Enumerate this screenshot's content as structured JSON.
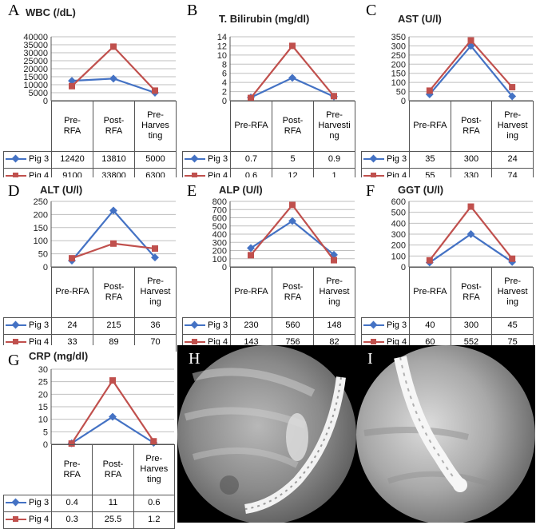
{
  "colors": {
    "pig3": "#4472C4",
    "pig4": "#C0504D",
    "grid": "#BFBFBF"
  },
  "chart_data": [
    {
      "letter": "A",
      "type": "line",
      "title": "WBC (/dL)",
      "categories": [
        "Pre-RFA",
        "Post-RFA",
        "Pre-Harvesting"
      ],
      "category_labels": [
        [
          "Pre-",
          "RFA"
        ],
        [
          "Post-",
          "RFA"
        ],
        [
          "Pre-",
          "Harves",
          "ting"
        ]
      ],
      "y_ticks": [
        "0",
        "5000",
        "10000",
        "15000",
        "20000",
        "25000",
        "30000",
        "35000",
        "40000"
      ],
      "ylim": [
        0,
        40000
      ],
      "series": [
        {
          "name": "Pig 3",
          "values": [
            12420,
            13810,
            5000
          ],
          "labels": [
            "12420",
            "13810",
            "5000"
          ]
        },
        {
          "name": "Pig 4",
          "values": [
            9100,
            33800,
            6300
          ],
          "labels": [
            "9100",
            "33800",
            "6300"
          ]
        }
      ]
    },
    {
      "letter": "B",
      "type": "line",
      "title": "T. Bilirubin (mg/dl)",
      "categories": [
        "Pre-RFA",
        "Post-RFA",
        "Pre-Harvesting"
      ],
      "category_labels": [
        [
          "Pre-RFA"
        ],
        [
          "Post-",
          "RFA"
        ],
        [
          "Pre-",
          "Harvesti",
          "ng"
        ]
      ],
      "y_ticks": [
        "0",
        "2",
        "4",
        "6",
        "8",
        "10",
        "12",
        "14"
      ],
      "ylim": [
        0,
        14
      ],
      "series": [
        {
          "name": "Pig 3",
          "values": [
            0.7,
            5,
            0.9
          ],
          "labels": [
            "0.7",
            "5",
            "0.9"
          ]
        },
        {
          "name": "Pig 4",
          "values": [
            0.6,
            12,
            1
          ],
          "labels": [
            "0.6",
            "12",
            "1"
          ]
        }
      ]
    },
    {
      "letter": "C",
      "type": "line",
      "title": "AST (U/l)",
      "categories": [
        "Pre-RFA",
        "Post-RFA",
        "Pre-Harvesting"
      ],
      "category_labels": [
        [
          "Pre-RFA"
        ],
        [
          "Post-",
          "RFA"
        ],
        [
          "Pre-",
          "Harvest",
          "ing"
        ]
      ],
      "y_ticks": [
        "0",
        "50",
        "100",
        "150",
        "200",
        "250",
        "300",
        "350"
      ],
      "ylim": [
        0,
        350
      ],
      "series": [
        {
          "name": "Pig 3",
          "values": [
            35,
            300,
            24
          ],
          "labels": [
            "35",
            "300",
            "24"
          ]
        },
        {
          "name": "Pig 4",
          "values": [
            55,
            330,
            74
          ],
          "labels": [
            "55",
            "330",
            "74"
          ]
        }
      ]
    },
    {
      "letter": "D",
      "type": "line",
      "title": "ALT (U/l)",
      "categories": [
        "Pre-RFA",
        "Post-RFA",
        "Pre-Harvesting"
      ],
      "category_labels": [
        [
          "Pre-RFA"
        ],
        [
          "Post-",
          "RFA"
        ],
        [
          "Pre-",
          "Harvest",
          "ing"
        ]
      ],
      "y_ticks": [
        "0",
        "50",
        "100",
        "150",
        "200",
        "250"
      ],
      "ylim": [
        0,
        250
      ],
      "series": [
        {
          "name": "Pig 3",
          "values": [
            24,
            215,
            36
          ],
          "labels": [
            "24",
            "215",
            "36"
          ]
        },
        {
          "name": "Pig 4",
          "values": [
            33,
            89,
            70
          ],
          "labels": [
            "33",
            "89",
            "70"
          ]
        }
      ]
    },
    {
      "letter": "E",
      "type": "line",
      "title": "ALP (U/l)",
      "categories": [
        "Pre-RFA",
        "Post-RFA",
        "Pre-Harvesting"
      ],
      "category_labels": [
        [
          "Pre-RFA"
        ],
        [
          "Post-",
          "RFA"
        ],
        [
          "Pre-",
          "Harvest",
          "ing"
        ]
      ],
      "y_ticks": [
        "0",
        "100",
        "200",
        "300",
        "400",
        "500",
        "600",
        "700",
        "800"
      ],
      "ylim": [
        0,
        800
      ],
      "series": [
        {
          "name": "Pig 3",
          "values": [
            230,
            560,
            148
          ],
          "labels": [
            "230",
            "560",
            "148"
          ]
        },
        {
          "name": "Pig 4",
          "values": [
            143,
            756,
            82
          ],
          "labels": [
            "143",
            "756",
            "82"
          ]
        }
      ]
    },
    {
      "letter": "F",
      "type": "line",
      "title": "GGT (U/l)",
      "categories": [
        "Pre-RFA",
        "Post-RFA",
        "Pre-Harvesting"
      ],
      "category_labels": [
        [
          "Pre-RFA"
        ],
        [
          "Post-",
          "RFA"
        ],
        [
          "Pre-",
          "Harvest",
          "ing"
        ]
      ],
      "y_ticks": [
        "0",
        "100",
        "200",
        "300",
        "400",
        "500",
        "600"
      ],
      "ylim": [
        0,
        600
      ],
      "series": [
        {
          "name": "Pig 3",
          "values": [
            40,
            300,
            45
          ],
          "labels": [
            "40",
            "300",
            "45"
          ]
        },
        {
          "name": "Pig 4",
          "values": [
            60,
            552,
            75
          ],
          "labels": [
            "60",
            "552",
            "75"
          ]
        }
      ]
    },
    {
      "letter": "G",
      "type": "line",
      "title": "CRP (mg/dl)",
      "categories": [
        "Pre-RFA",
        "Post-RFA",
        "Pre-Harvesting"
      ],
      "category_labels": [
        [
          "Pre-",
          "RFA"
        ],
        [
          "Post-",
          "RFA"
        ],
        [
          "Pre-",
          "Harves",
          "ting"
        ]
      ],
      "y_ticks": [
        "0",
        "5",
        "10",
        "15",
        "20",
        "25",
        "30"
      ],
      "ylim": [
        0,
        30
      ],
      "series": [
        {
          "name": "Pig 3",
          "values": [
            0.4,
            11,
            0.6
          ],
          "labels": [
            "0.4",
            "11",
            "0.6"
          ]
        },
        {
          "name": "Pig 4",
          "values": [
            0.3,
            25.5,
            1.2
          ],
          "labels": [
            "0.3",
            "25.5",
            "1.2"
          ]
        }
      ]
    }
  ],
  "images": [
    {
      "letter": "H"
    },
    {
      "letter": "I"
    }
  ]
}
